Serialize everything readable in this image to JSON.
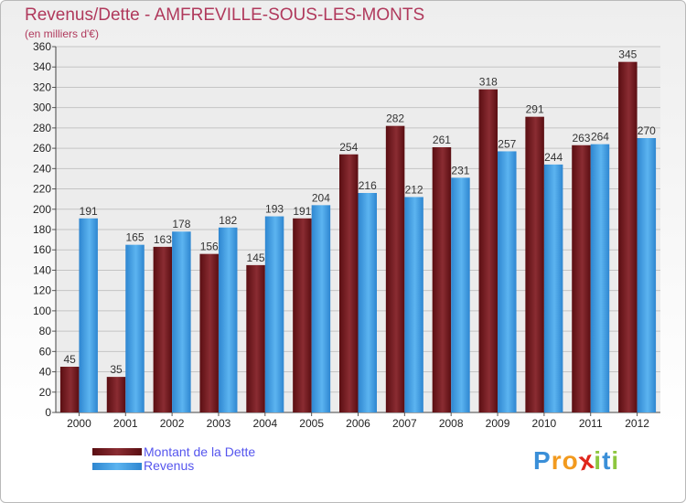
{
  "chart_data": {
    "type": "bar",
    "title": "Revenus/Dette - AMFREVILLE-SOUS-LES-MONTS",
    "subtitle": "(en milliers d'€)",
    "categories": [
      "2000",
      "2001",
      "2002",
      "2003",
      "2004",
      "2005",
      "2006",
      "2007",
      "2008",
      "2009",
      "2010",
      "2011",
      "2012"
    ],
    "series": [
      {
        "name": "Montant de la Dette",
        "color": "#7a1a1f",
        "values": [
          45,
          35,
          163,
          156,
          145,
          191,
          254,
          282,
          261,
          318,
          291,
          263,
          345
        ]
      },
      {
        "name": "Revenus",
        "color": "#4aa3e6",
        "values": [
          191,
          165,
          178,
          182,
          193,
          204,
          216,
          212,
          231,
          257,
          244,
          264,
          270
        ]
      }
    ],
    "ylim": [
      0,
      360
    ],
    "yticks": [
      0,
      20,
      40,
      60,
      80,
      100,
      120,
      140,
      160,
      180,
      200,
      220,
      240,
      260,
      280,
      300,
      320,
      340,
      360
    ],
    "grid": true,
    "legend_position": "bottom-left"
  },
  "logo": {
    "letters": [
      "P",
      "r",
      "o",
      "x",
      "i",
      "t",
      "i"
    ],
    "colors": [
      "#3a8fd8",
      "#f29a1e",
      "#f29a1e",
      "#e0261b",
      "#8dc63f",
      "#3a8fd8",
      "#8dc63f"
    ]
  }
}
